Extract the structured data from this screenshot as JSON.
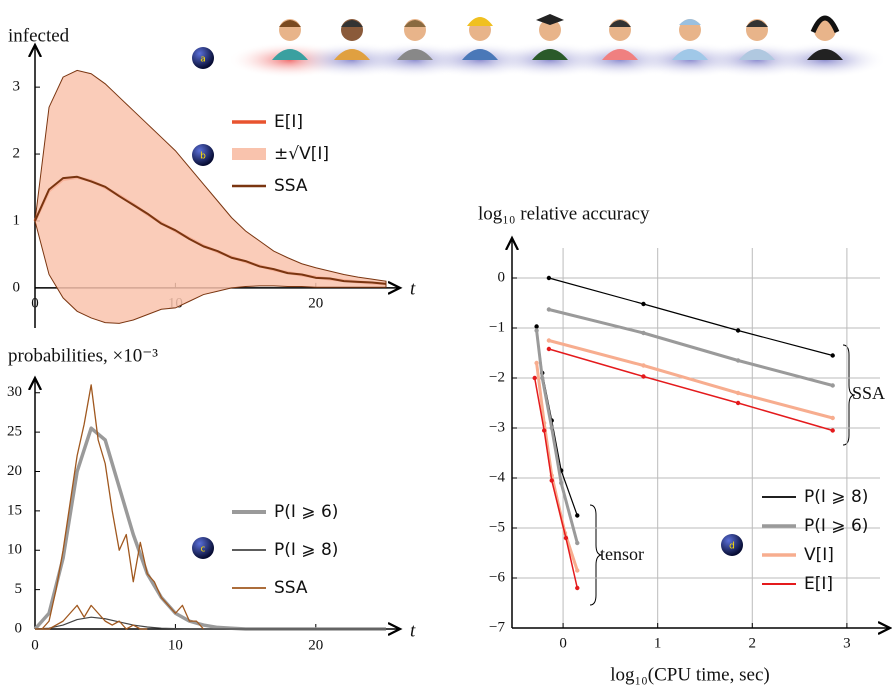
{
  "panel_a": "a",
  "chart_data": [
    {
      "type": "line",
      "panel": "b",
      "y_label": "infected",
      "x_label": "t",
      "xlim": [
        0,
        25
      ],
      "xticks": [
        0,
        10,
        20
      ],
      "ylim": [
        -0.6,
        3.6
      ],
      "yticks": [
        0,
        1,
        2,
        3
      ],
      "x": [
        0,
        1,
        2,
        3,
        4,
        5,
        6,
        7,
        8,
        9,
        10,
        11,
        12,
        13,
        14,
        15,
        16,
        17,
        18,
        19,
        20,
        21,
        22,
        23,
        24,
        25
      ],
      "series": [
        {
          "name": "E[I]",
          "color": "#e8532f",
          "line_width": 3,
          "values": [
            1,
            1.45,
            1.62,
            1.65,
            1.6,
            1.5,
            1.38,
            1.25,
            1.1,
            0.97,
            0.85,
            0.74,
            0.63,
            0.54,
            0.46,
            0.39,
            0.33,
            0.27,
            0.23,
            0.19,
            0.16,
            0.13,
            0.11,
            0.09,
            0.07,
            0.06
          ]
        },
        {
          "name": "±√V[I]",
          "color": "#f9c3ad",
          "lower": [
            1,
            0.2,
            -0.15,
            -0.35,
            -0.45,
            -0.52,
            -0.53,
            -0.48,
            -0.4,
            -0.32,
            -0.3,
            -0.2,
            -0.1,
            -0.05,
            0,
            0.02,
            0.03,
            0.03,
            0.02,
            0.02,
            0.01,
            0.01,
            0.01,
            0.01,
            0.01,
            0.01
          ],
          "upper": [
            1,
            2.7,
            3.15,
            3.25,
            3.2,
            3.05,
            2.85,
            2.65,
            2.45,
            2.25,
            2.05,
            1.8,
            1.55,
            1.3,
            1.05,
            0.85,
            0.7,
            0.55,
            0.45,
            0.36,
            0.3,
            0.25,
            0.2,
            0.16,
            0.13,
            0.1
          ]
        },
        {
          "name": "SSA",
          "color": "#7a3510",
          "line_width": 2,
          "values": [
            1,
            1.47,
            1.64,
            1.66,
            1.59,
            1.51,
            1.37,
            1.24,
            1.11,
            0.96,
            0.86,
            0.73,
            0.62,
            0.55,
            0.45,
            0.4,
            0.32,
            0.28,
            0.22,
            0.2,
            0.15,
            0.14,
            0.1,
            0.09,
            0.08,
            0.06
          ]
        }
      ]
    },
    {
      "type": "line",
      "panel": "c",
      "y_label": "probabilities, ×10⁻³",
      "x_label": "t",
      "xlim": [
        0,
        25
      ],
      "xticks": [
        0,
        10,
        20
      ],
      "ylim": [
        0,
        32
      ],
      "yticks": [
        0,
        5,
        10,
        15,
        20,
        25,
        30
      ],
      "x": [
        0,
        1,
        2,
        3,
        4,
        5,
        6,
        7,
        8,
        9,
        10,
        11,
        12,
        13,
        14,
        15,
        16,
        17,
        18,
        19,
        20,
        21,
        22,
        23,
        24,
        25
      ],
      "series": [
        {
          "name": "P(I ⩾ 6)",
          "color": "#9a9a9a",
          "line_width": 3.5,
          "values": [
            0,
            2,
            9,
            20,
            25.5,
            24,
            18,
            12,
            7,
            4,
            2,
            1,
            0.5,
            0.2,
            0.1,
            0,
            0,
            0,
            0,
            0,
            0,
            0,
            0,
            0,
            0,
            0
          ]
        },
        {
          "name": "P(I ⩾ 8)",
          "color": "#444444",
          "line_width": 1.2,
          "values": [
            0,
            0.1,
            0.5,
            1.2,
            1.5,
            1.3,
            0.9,
            0.5,
            0.25,
            0.1,
            0.05,
            0,
            0,
            0,
            0,
            0,
            0,
            0,
            0,
            0,
            0,
            0,
            0,
            0,
            0,
            0
          ]
        },
        {
          "name": "SSA",
          "color": "#a0581f",
          "line_width": 1.3,
          "x": [
            0,
            0.5,
            1,
            1.5,
            2,
            2.5,
            3,
            3.5,
            4,
            4.5,
            5,
            5.5,
            6,
            6.5,
            7,
            7.5,
            8,
            8.5,
            9,
            9.5,
            10,
            10.5,
            11,
            11.5,
            12,
            null,
            0,
            0.5,
            1,
            1.5,
            2,
            2.5,
            3,
            3.5,
            4,
            4.5,
            5,
            5.5,
            6,
            6.5,
            7,
            7.5,
            8
          ],
          "values": [
            0,
            0,
            1,
            5,
            10,
            16,
            22,
            26,
            31,
            24,
            21,
            15,
            10,
            12,
            6,
            11,
            7,
            6,
            4,
            3,
            2,
            3,
            1,
            1,
            0,
            null,
            0,
            0,
            0,
            0.5,
            1,
            2,
            3,
            1.5,
            3,
            2,
            1,
            0.5,
            1,
            0,
            0.5,
            0,
            0
          ]
        }
      ]
    },
    {
      "type": "line",
      "panel": "d",
      "y_label": "log₁₀ relative accuracy",
      "x_label": "log₁₀(CPU time, sec)",
      "grid": true,
      "xlim": [
        -0.54,
        3.35
      ],
      "xticks": [
        0,
        1,
        2,
        3
      ],
      "ylim": [
        -7,
        0.6
      ],
      "yticks": [
        0,
        {
          "value": -1,
          "label": "−1"
        },
        {
          "value": -2,
          "label": "−2"
        },
        {
          "value": -3,
          "label": "−3"
        },
        {
          "value": -4,
          "label": "−4"
        },
        {
          "value": -5,
          "label": "−5"
        },
        {
          "value": -6,
          "label": "−6"
        },
        {
          "value": -7,
          "label": "−7"
        }
      ],
      "annotations": [
        "SSA",
        "tensor"
      ],
      "series": [
        {
          "name": "P(I ⩾ 8)",
          "color": "#000000",
          "line_width": 1.2,
          "x": [
            -0.28,
            -0.22,
            -0.12,
            -0.02,
            0.15,
            null,
            -0.15,
            0.85,
            1.85,
            2.85
          ],
          "values": [
            -0.97,
            -1.9,
            -2.85,
            -3.85,
            -4.75,
            null,
            0,
            -0.52,
            -1.05,
            -1.55
          ]
        },
        {
          "name": "P(I ⩾ 6)",
          "color": "#9a9a9a",
          "line_width": 3,
          "x": [
            -0.28,
            -0.22,
            -0.12,
            -0.02,
            0.15,
            null,
            -0.15,
            0.85,
            1.85,
            2.85
          ],
          "values": [
            -1.05,
            -2,
            -3,
            -4.1,
            -5.3,
            null,
            -0.63,
            -1.1,
            -1.65,
            -2.15
          ]
        },
        {
          "name": "V[I]",
          "color": "#f7ad8f",
          "line_width": 3,
          "x": [
            -0.28,
            -0.2,
            -0.12,
            0.02,
            0.15,
            null,
            -0.15,
            0.85,
            1.85,
            2.85
          ],
          "values": [
            -1.7,
            -2.9,
            -3.95,
            -5.1,
            -5.85,
            null,
            -1.25,
            -1.75,
            -2.3,
            -2.8
          ]
        },
        {
          "name": "E[I]",
          "color": "#e41a1c",
          "line_width": 1.5,
          "x": [
            -0.3,
            -0.2,
            -0.12,
            0.03,
            0.15,
            null,
            -0.15,
            0.85,
            1.85,
            2.85
          ],
          "values": [
            -2,
            -3.05,
            -4.05,
            -5.2,
            -6.2,
            null,
            -1.42,
            -1.97,
            -2.5,
            -3.05
          ]
        }
      ]
    }
  ]
}
